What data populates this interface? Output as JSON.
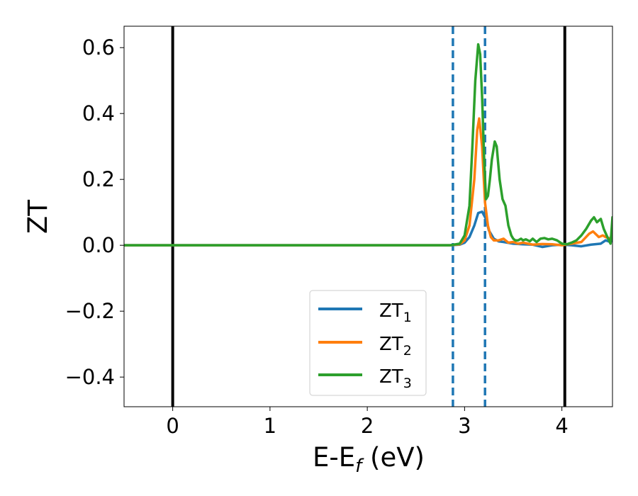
{
  "chart_data": {
    "type": "line",
    "xlabel": "E-E",
    "xlabel_sub": "f",
    "xlabel_unit": " (eV)",
    "ylabel": "ZT",
    "xlim": [
      -0.5,
      4.52
    ],
    "ylim": [
      -0.49,
      0.665
    ],
    "x_ticks": [
      0,
      1,
      2,
      3,
      4
    ],
    "y_ticks": [
      -0.4,
      -0.2,
      0.0,
      0.2,
      0.4,
      0.6
    ],
    "x_tick_labels": [
      "0",
      "1",
      "2",
      "3",
      "4"
    ],
    "y_tick_labels": [
      "−0.4",
      "−0.2",
      "0.0",
      "0.2",
      "0.4",
      "0.6"
    ],
    "grid": false,
    "legend_position": "bottom-center",
    "vlines": [
      {
        "x": 0.0,
        "style": "solid",
        "color": "#000000"
      },
      {
        "x": 4.03,
        "style": "solid",
        "color": "#000000"
      },
      {
        "x": 2.88,
        "style": "dashed",
        "color": "#1f77b4"
      },
      {
        "x": 3.21,
        "style": "dashed",
        "color": "#1f77b4"
      }
    ],
    "series": [
      {
        "name": "ZT",
        "sub": "1",
        "color": "#1f77b4",
        "x": [
          -0.5,
          2.85,
          2.95,
          3.0,
          3.05,
          3.1,
          3.14,
          3.18,
          3.22,
          3.25,
          3.3,
          3.35,
          3.4,
          3.5,
          3.6,
          3.7,
          3.8,
          3.9,
          4.0,
          4.1,
          4.2,
          4.3,
          4.4,
          4.45,
          4.5,
          4.52
        ],
        "y": [
          0.0,
          0.0,
          0.002,
          0.008,
          0.025,
          0.06,
          0.098,
          0.102,
          0.08,
          0.045,
          0.02,
          0.012,
          0.01,
          0.005,
          0.003,
          0.002,
          -0.005,
          0.0,
          0.002,
          0.0,
          -0.003,
          0.002,
          0.005,
          0.015,
          0.01,
          0.015
        ]
      },
      {
        "name": "ZT",
        "sub": "2",
        "color": "#ff7f0e",
        "x": [
          -0.5,
          2.85,
          2.95,
          3.0,
          3.05,
          3.1,
          3.13,
          3.15,
          3.18,
          3.21,
          3.24,
          3.27,
          3.3,
          3.35,
          3.4,
          3.45,
          3.5,
          3.55,
          3.6,
          3.7,
          3.8,
          3.9,
          4.0,
          4.1,
          4.2,
          4.28,
          4.32,
          4.38,
          4.42,
          4.45,
          4.5,
          4.52
        ],
        "y": [
          0.0,
          0.0,
          0.003,
          0.015,
          0.06,
          0.2,
          0.35,
          0.385,
          0.3,
          0.13,
          0.06,
          0.025,
          0.015,
          0.015,
          0.02,
          0.008,
          0.01,
          0.005,
          0.008,
          0.002,
          0.004,
          0.003,
          0.0,
          0.005,
          0.01,
          0.035,
          0.042,
          0.025,
          0.03,
          0.025,
          0.02,
          0.04
        ]
      },
      {
        "name": "ZT",
        "sub": "3",
        "color": "#2ca02c",
        "x": [
          -0.5,
          2.85,
          2.95,
          3.0,
          3.05,
          3.08,
          3.11,
          3.14,
          3.16,
          3.18,
          3.2,
          3.22,
          3.24,
          3.26,
          3.28,
          3.31,
          3.33,
          3.36,
          3.39,
          3.42,
          3.45,
          3.48,
          3.5,
          3.52,
          3.55,
          3.58,
          3.6,
          3.63,
          3.67,
          3.7,
          3.74,
          3.78,
          3.82,
          3.86,
          3.9,
          3.95,
          4.0,
          4.05,
          4.1,
          4.15,
          4.2,
          4.25,
          4.3,
          4.33,
          4.36,
          4.4,
          4.43,
          4.46,
          4.5,
          4.52
        ],
        "y": [
          0.0,
          0.0,
          0.005,
          0.03,
          0.12,
          0.3,
          0.5,
          0.61,
          0.58,
          0.45,
          0.27,
          0.14,
          0.15,
          0.2,
          0.26,
          0.315,
          0.3,
          0.2,
          0.14,
          0.12,
          0.06,
          0.03,
          0.02,
          0.015,
          0.015,
          0.02,
          0.015,
          0.018,
          0.012,
          0.02,
          0.01,
          0.02,
          0.022,
          0.018,
          0.02,
          0.015,
          0.005,
          0.003,
          0.008,
          0.015,
          0.03,
          0.05,
          0.075,
          0.085,
          0.07,
          0.08,
          0.05,
          0.03,
          0.005,
          0.085
        ]
      }
    ]
  }
}
